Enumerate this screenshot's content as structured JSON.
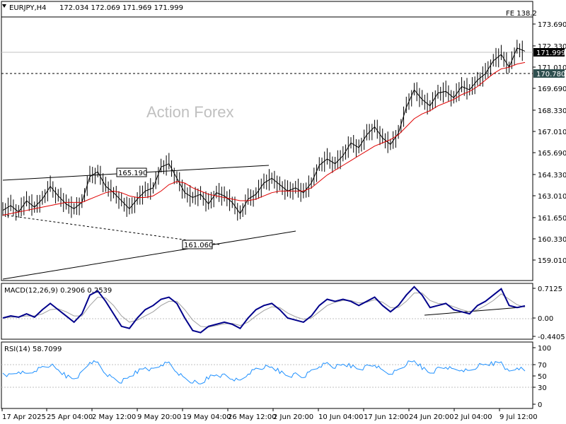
{
  "header": {
    "symbol": "EURJPY,H4",
    "ohlc": "172.034 172.069 171.969 171.999",
    "fe_label": "FE 138.2"
  },
  "watermark": "Action Forex",
  "colors": {
    "ma": "#e00000",
    "macd": "#00008b",
    "signal": "#a0a0a0",
    "rsi": "#1e90ff",
    "price": "#000000"
  },
  "chart_data": [
    {
      "type": "line",
      "panel": "price",
      "ylim": [
        159.01,
        174.4
      ],
      "y_ticks": [
        "173.690",
        "172.330",
        "171.010",
        "169.690",
        "168.330",
        "167.010",
        "165.690",
        "164.330",
        "163.010",
        "161.650",
        "160.330",
        "159.010"
      ],
      "x_ticks": [
        "17 Apr 2025",
        "25 Apr 04:00",
        "2 May 12:00",
        "9 May 20:00",
        "19 May 04:00",
        "26 May 12:00",
        "2 Jun 20:00",
        "10 Jun 04:00",
        "17 Jun 12:00",
        "24 Jun 20:00",
        "2 Jul 04:00",
        "9 Jul 12:00"
      ],
      "price_series": [
        162.1,
        162.4,
        162.0,
        162.7,
        162.3,
        162.8,
        163.6,
        163.0,
        162.5,
        162.2,
        162.6,
        164.2,
        164.5,
        163.6,
        163.2,
        162.7,
        162.2,
        162.8,
        163.3,
        163.5,
        164.8,
        165.0,
        164.1,
        163.2,
        162.9,
        163.1,
        162.5,
        163.2,
        163.0,
        162.6,
        161.9,
        162.8,
        163.1,
        163.8,
        164.1,
        163.7,
        163.3,
        163.5,
        163.2,
        163.8,
        164.9,
        165.3,
        165.0,
        165.5,
        166.3,
        166.0,
        166.8,
        167.3,
        166.6,
        166.2,
        166.9,
        168.5,
        169.6,
        169.0,
        168.6,
        169.4,
        169.5,
        169.1,
        169.8,
        169.6,
        170.2,
        170.6,
        171.4,
        171.8,
        171.0,
        172.2,
        171.999
      ],
      "ma_series": [
        161.8,
        161.9,
        162.0,
        162.1,
        162.2,
        162.3,
        162.4,
        162.5,
        162.6,
        162.6,
        162.6,
        162.8,
        163.0,
        163.2,
        163.3,
        163.2,
        163.0,
        162.9,
        162.9,
        163.0,
        163.3,
        163.7,
        163.9,
        163.8,
        163.5,
        163.3,
        163.1,
        163.0,
        162.9,
        162.8,
        162.7,
        162.7,
        162.8,
        163.0,
        163.2,
        163.3,
        163.3,
        163.3,
        163.3,
        163.5,
        163.9,
        164.3,
        164.6,
        164.9,
        165.2,
        165.5,
        165.8,
        166.1,
        166.3,
        166.5,
        166.8,
        167.3,
        167.8,
        168.1,
        168.3,
        168.6,
        168.8,
        169.0,
        169.3,
        169.5,
        169.8,
        170.2,
        170.6,
        170.9,
        171.0,
        171.2,
        171.3
      ],
      "current_price_label": "171.999",
      "dotted_level_label": "170.780",
      "annotations": [
        "165.190",
        "161.060"
      ]
    },
    {
      "type": "line",
      "panel": "macd",
      "title": "MACD(12,26,9) 0.2906 0.2539",
      "ylim": [
        -0.4405,
        0.7125
      ],
      "y_ticks": [
        "0.7125",
        "0.00",
        "-0.4405"
      ],
      "macd_series": [
        0.0,
        0.05,
        0.02,
        0.1,
        0.02,
        0.2,
        0.35,
        0.2,
        0.05,
        -0.1,
        0.1,
        0.55,
        0.65,
        0.4,
        0.1,
        -0.2,
        -0.25,
        0.0,
        0.2,
        0.3,
        0.45,
        0.5,
        0.35,
        0.0,
        -0.3,
        -0.35,
        -0.2,
        -0.15,
        -0.1,
        -0.15,
        -0.25,
        0.0,
        0.2,
        0.3,
        0.35,
        0.2,
        0.0,
        -0.05,
        -0.1,
        0.05,
        0.3,
        0.45,
        0.4,
        0.45,
        0.4,
        0.3,
        0.4,
        0.5,
        0.3,
        0.15,
        0.3,
        0.55,
        0.75,
        0.55,
        0.25,
        0.3,
        0.35,
        0.2,
        0.15,
        0.1,
        0.3,
        0.4,
        0.55,
        0.7,
        0.3,
        0.25,
        0.2906
      ],
      "signal_series": [
        0.0,
        0.02,
        0.03,
        0.05,
        0.05,
        0.1,
        0.2,
        0.22,
        0.15,
        0.05,
        0.05,
        0.3,
        0.5,
        0.48,
        0.3,
        0.05,
        -0.1,
        -0.05,
        0.05,
        0.15,
        0.3,
        0.4,
        0.4,
        0.2,
        -0.05,
        -0.2,
        -0.22,
        -0.18,
        -0.14,
        -0.13,
        -0.18,
        -0.1,
        0.05,
        0.18,
        0.27,
        0.25,
        0.12,
        0.03,
        -0.03,
        0.0,
        0.15,
        0.3,
        0.38,
        0.42,
        0.42,
        0.36,
        0.38,
        0.44,
        0.38,
        0.25,
        0.25,
        0.4,
        0.6,
        0.6,
        0.42,
        0.35,
        0.34,
        0.27,
        0.2,
        0.15,
        0.2,
        0.3,
        0.42,
        0.58,
        0.45,
        0.32,
        0.2539
      ]
    },
    {
      "type": "line",
      "panel": "rsi",
      "title": "RSI(14) 58.7099",
      "ylim": [
        0,
        100
      ],
      "y_ticks": [
        "100",
        "70",
        "50",
        "30",
        "0"
      ],
      "levels": [
        70,
        30
      ],
      "series": [
        55,
        50,
        58,
        52,
        60,
        65,
        70,
        60,
        50,
        45,
        55,
        75,
        72,
        55,
        45,
        40,
        48,
        58,
        65,
        60,
        70,
        72,
        58,
        45,
        40,
        35,
        48,
        52,
        50,
        45,
        40,
        55,
        62,
        66,
        65,
        58,
        50,
        52,
        48,
        58,
        68,
        72,
        66,
        70,
        68,
        62,
        66,
        70,
        58,
        55,
        60,
        72,
        76,
        65,
        55,
        62,
        66,
        60,
        62,
        58,
        68,
        70,
        72,
        75,
        55,
        65,
        58.7
      ]
    }
  ]
}
